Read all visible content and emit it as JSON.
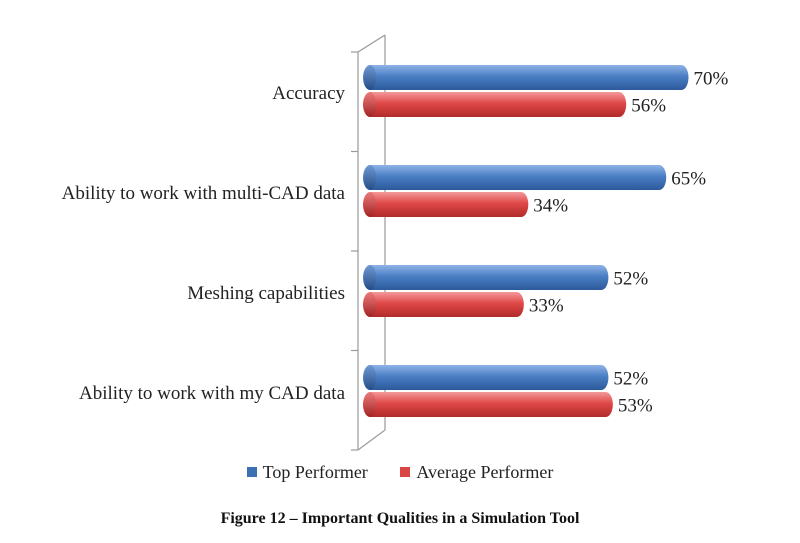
{
  "chart_data": {
    "type": "bar",
    "orientation": "horizontal",
    "categories": [
      "Accuracy",
      "Ability to work with multi-CAD data",
      "Meshing capabilities",
      "Ability to work with my CAD data"
    ],
    "series": [
      {
        "name": "Top Performer",
        "values": [
          70,
          65,
          52,
          52
        ],
        "color": "#4a7ec4"
      },
      {
        "name": "Average Performer",
        "values": [
          56,
          34,
          33,
          53
        ],
        "color": "#e04848"
      }
    ],
    "value_labels": [
      [
        "70%",
        "65%",
        "52%",
        "52%"
      ],
      [
        "56%",
        "34%",
        "33%",
        "53%"
      ]
    ],
    "xlim": [
      0,
      70
    ],
    "legend_position": "bottom",
    "grid": false
  },
  "caption": "Figure 12 – Important Qualities in a Simulation Tool"
}
